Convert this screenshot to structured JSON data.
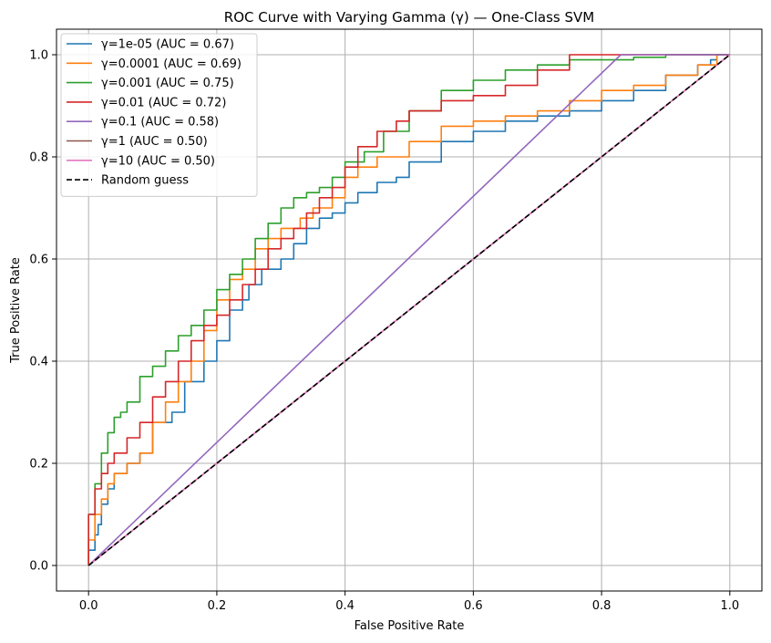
{
  "chart_data": {
    "type": "line",
    "title": "ROC Curve with Varying Gamma (γ) — One-Class SVM",
    "xlabel": "False Positive Rate",
    "ylabel": "True Positive Rate",
    "xlim": [
      -0.05,
      1.05
    ],
    "ylim": [
      -0.05,
      1.05
    ],
    "xticks": [
      0.0,
      0.2,
      0.4,
      0.6,
      0.8,
      1.0
    ],
    "yticks": [
      0.0,
      0.2,
      0.4,
      0.6,
      0.8,
      1.0
    ],
    "xtick_labels": [
      "0.0",
      "0.2",
      "0.4",
      "0.6",
      "0.8",
      "1.0"
    ],
    "ytick_labels": [
      "0.0",
      "0.2",
      "0.4",
      "0.6",
      "0.8",
      "1.0"
    ],
    "grid": true,
    "legend_position": "top-left",
    "series": [
      {
        "name": "γ=1e-05 (AUC = 0.67)",
        "color": "#1f77b4",
        "x": [
          0.0,
          0.01,
          0.015,
          0.02,
          0.03,
          0.04,
          0.06,
          0.08,
          0.1,
          0.13,
          0.15,
          0.18,
          0.2,
          0.22,
          0.24,
          0.25,
          0.27,
          0.3,
          0.32,
          0.34,
          0.36,
          0.38,
          0.4,
          0.42,
          0.45,
          0.48,
          0.5,
          0.55,
          0.6,
          0.65,
          0.7,
          0.75,
          0.8,
          0.85,
          0.9,
          0.95,
          0.97,
          0.98,
          1.0
        ],
        "y": [
          0.0,
          0.03,
          0.06,
          0.08,
          0.12,
          0.15,
          0.18,
          0.2,
          0.22,
          0.28,
          0.3,
          0.36,
          0.4,
          0.44,
          0.5,
          0.52,
          0.55,
          0.58,
          0.6,
          0.63,
          0.66,
          0.68,
          0.69,
          0.71,
          0.73,
          0.75,
          0.76,
          0.79,
          0.83,
          0.85,
          0.87,
          0.88,
          0.89,
          0.91,
          0.93,
          0.96,
          0.98,
          0.99,
          1.0
        ]
      },
      {
        "name": "γ=0.0001 (AUC = 0.69)",
        "color": "#ff7f0e",
        "x": [
          0.0,
          0.01,
          0.02,
          0.03,
          0.04,
          0.06,
          0.08,
          0.1,
          0.12,
          0.14,
          0.16,
          0.18,
          0.2,
          0.22,
          0.24,
          0.26,
          0.28,
          0.3,
          0.33,
          0.35,
          0.38,
          0.4,
          0.42,
          0.45,
          0.5,
          0.55,
          0.6,
          0.65,
          0.7,
          0.75,
          0.8,
          0.85,
          0.9,
          0.95,
          0.98,
          1.0
        ],
        "y": [
          0.0,
          0.05,
          0.1,
          0.13,
          0.16,
          0.18,
          0.2,
          0.22,
          0.28,
          0.32,
          0.36,
          0.4,
          0.46,
          0.52,
          0.56,
          0.58,
          0.62,
          0.64,
          0.66,
          0.68,
          0.7,
          0.72,
          0.76,
          0.78,
          0.8,
          0.83,
          0.86,
          0.87,
          0.88,
          0.89,
          0.91,
          0.93,
          0.94,
          0.96,
          0.98,
          1.0
        ]
      },
      {
        "name": "γ=0.001 (AUC = 0.75)",
        "color": "#2ca02c",
        "x": [
          0.0,
          0.01,
          0.02,
          0.03,
          0.04,
          0.05,
          0.06,
          0.08,
          0.1,
          0.12,
          0.14,
          0.16,
          0.18,
          0.2,
          0.22,
          0.24,
          0.26,
          0.28,
          0.3,
          0.32,
          0.34,
          0.36,
          0.38,
          0.4,
          0.43,
          0.46,
          0.5,
          0.55,
          0.6,
          0.65,
          0.7,
          0.75,
          0.8,
          0.85,
          0.9,
          0.95,
          1.0
        ],
        "y": [
          0.0,
          0.1,
          0.16,
          0.22,
          0.26,
          0.29,
          0.3,
          0.32,
          0.37,
          0.39,
          0.42,
          0.45,
          0.47,
          0.5,
          0.54,
          0.57,
          0.6,
          0.64,
          0.67,
          0.7,
          0.72,
          0.73,
          0.74,
          0.76,
          0.79,
          0.81,
          0.85,
          0.89,
          0.93,
          0.95,
          0.97,
          0.98,
          0.99,
          0.99,
          0.995,
          1.0,
          1.0
        ]
      },
      {
        "name": "γ=0.01 (AUC = 0.72)",
        "color": "#d62728",
        "x": [
          0.0,
          0.01,
          0.02,
          0.03,
          0.04,
          0.06,
          0.08,
          0.1,
          0.12,
          0.14,
          0.16,
          0.18,
          0.2,
          0.22,
          0.24,
          0.26,
          0.28,
          0.3,
          0.32,
          0.34,
          0.36,
          0.38,
          0.4,
          0.42,
          0.45,
          0.48,
          0.5,
          0.55,
          0.6,
          0.65,
          0.7,
          0.75,
          0.8,
          0.85,
          0.9,
          1.0
        ],
        "y": [
          0.0,
          0.1,
          0.15,
          0.18,
          0.2,
          0.22,
          0.25,
          0.28,
          0.33,
          0.36,
          0.4,
          0.44,
          0.47,
          0.49,
          0.52,
          0.55,
          0.58,
          0.62,
          0.64,
          0.66,
          0.69,
          0.72,
          0.74,
          0.78,
          0.82,
          0.85,
          0.87,
          0.89,
          0.91,
          0.92,
          0.94,
          0.97,
          1.0,
          1.0,
          1.0,
          1.0
        ]
      },
      {
        "name": "γ=0.1 (AUC = 0.58)",
        "color": "#9467bd",
        "x": [
          0.0,
          0.83,
          1.0
        ],
        "y": [
          0.0,
          1.0,
          1.0
        ]
      },
      {
        "name": "γ=1 (AUC = 0.50)",
        "color": "#8c564b",
        "x": [
          0.0,
          1.0
        ],
        "y": [
          0.0,
          1.0
        ]
      },
      {
        "name": "γ=10 (AUC = 0.50)",
        "color": "#e377c2",
        "x": [
          0.0,
          1.0
        ],
        "y": [
          0.0,
          1.0
        ]
      },
      {
        "name": "Random guess",
        "color": "#000000",
        "dashed": true,
        "x": [
          0.0,
          1.0
        ],
        "y": [
          0.0,
          1.0
        ]
      }
    ]
  }
}
